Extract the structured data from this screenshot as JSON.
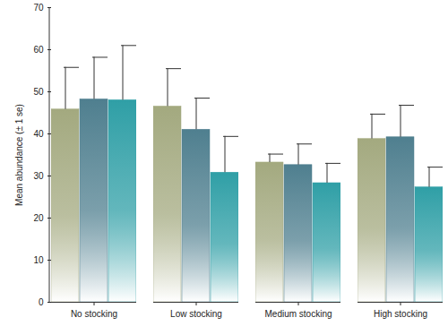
{
  "chart_data": {
    "type": "bar",
    "categories": [
      "No stocking",
      "Low stocking",
      "Medium stocking",
      "High stocking"
    ],
    "y_label": "Mean abundance (± 1 se)",
    "ylim": [
      0,
      70
    ],
    "yticks": [
      0,
      10,
      20,
      30,
      40,
      50,
      60,
      70
    ],
    "grid": false,
    "series": [
      {
        "color": "#a3a97f",
        "values": [
          45.8,
          46.5,
          33.2,
          38.8
        ],
        "errors": [
          10.0,
          9.0,
          2.0,
          5.9
        ]
      },
      {
        "color": "#4f7f8f",
        "values": [
          48.2,
          41.0,
          32.6,
          39.2
        ],
        "errors": [
          10.0,
          7.5,
          5.0,
          7.6
        ]
      },
      {
        "color": "#2f9fa6",
        "values": [
          48.0,
          30.8,
          28.3,
          27.3
        ],
        "errors": [
          13.0,
          8.6,
          4.7,
          4.8
        ]
      }
    ]
  }
}
